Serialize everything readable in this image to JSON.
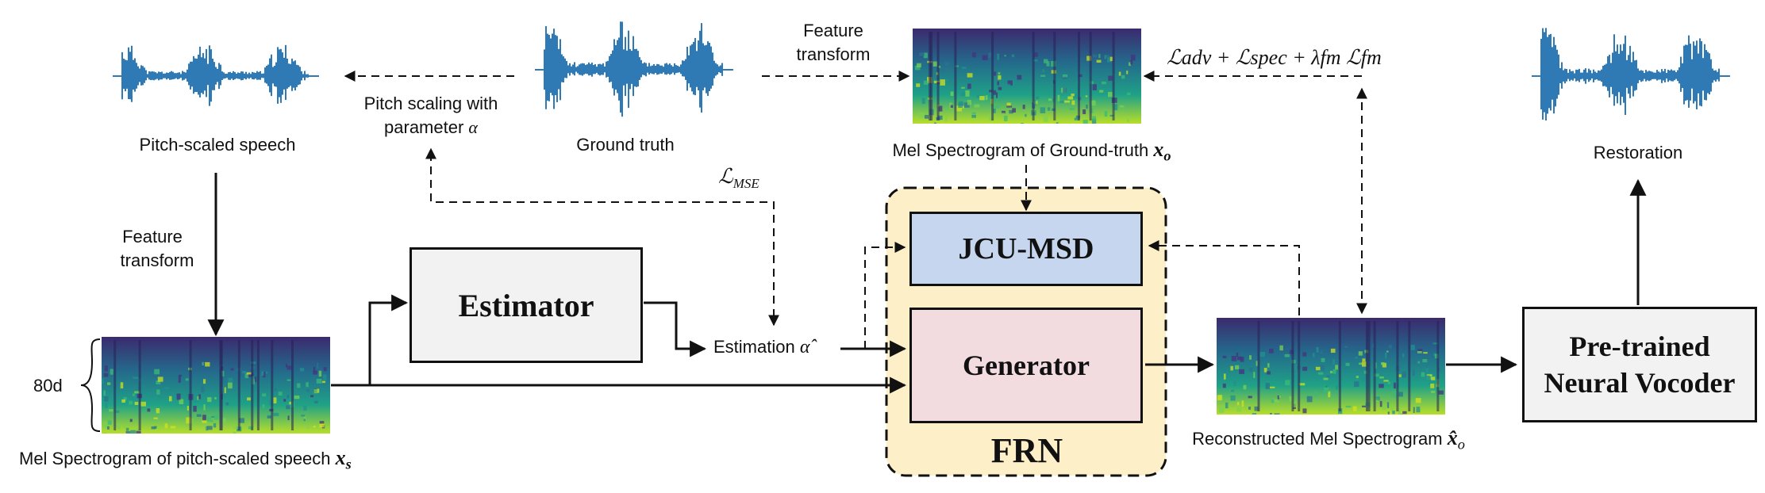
{
  "labels": {
    "pitch_scaled_speech": "Pitch-scaled speech",
    "ground_truth": "Ground truth",
    "pitch_scaling_line1": "Pitch scaling with",
    "pitch_scaling_line2": "parameter",
    "pitch_scaling_param": "α",
    "feature_transform_top_1": "Feature",
    "feature_transform_top_2": "transform",
    "feature_transform_left_1": "Feature",
    "feature_transform_left_2": "transform",
    "mel_gt_text": "Mel Spectrogram of Ground-truth",
    "mel_gt_symbol": "x",
    "mel_gt_sub": "o",
    "restoration": "Restoration",
    "loss_mse_symbol": "ℒ",
    "loss_mse_sub": "MSE",
    "loss_total": "ℒadv + ℒspec + λfm ℒfm",
    "dim_80d": "80d",
    "mel_ps_text": "Mel Spectrogram of pitch-scaled speech",
    "mel_ps_symbol": "x",
    "mel_ps_sub": "s",
    "estimation_text": "Estimation",
    "estimation_symbol": "α̂",
    "recon_text": "Reconstructed Mel Spectrogram",
    "recon_symbol": "x̂",
    "recon_sub": "o"
  },
  "blocks": {
    "estimator": "Estimator",
    "jcu_msd": "JCU-MSD",
    "generator": "Generator",
    "frn": "FRN",
    "vocoder_line1": "Pre-trained",
    "vocoder_line2": "Neural Vocoder"
  },
  "colors": {
    "waveform": "#2f7ab5",
    "estimator_fill": "#f2f2f2",
    "jcu_fill": "#c6d6ee",
    "generator_fill": "#f2dcdf",
    "frn_fill": "#fdf0c8",
    "vocoder_fill": "#f2f2f2"
  }
}
